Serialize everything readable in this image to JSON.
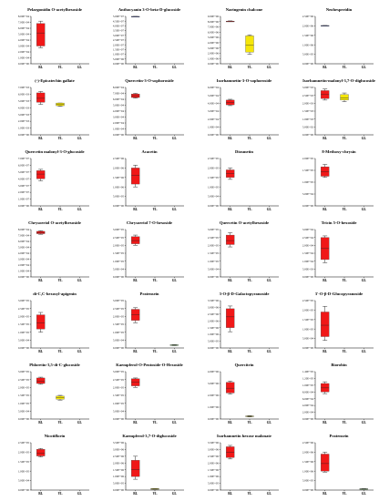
{
  "colors": {
    "red": "#f01818",
    "yellow": "#f5e60a",
    "green": "#4dbb2a",
    "blue": "#3a48b8",
    "axis": "#000000",
    "tick_text": "#222222"
  },
  "chart_data": [
    {
      "type": "box",
      "title": "Pelargonidin O-acetylhexoside",
      "categories": [
        "BL",
        "YL",
        "GL"
      ],
      "yticks": [
        "0.00E+00",
        "1.00E+04",
        "2.00E+04",
        "3.00E+04",
        "4.00E+04",
        "5.00E+04",
        "6.00E+04",
        "7.00E+04",
        "8.00E+04"
      ],
      "ylim": [
        0,
        80000
      ],
      "boxes": [
        {
          "color": "red",
          "min": 27000,
          "q1": 30000,
          "median": 52000,
          "q3": 68000,
          "max": 72000
        },
        null,
        null
      ]
    },
    {
      "type": "box",
      "title": "Anthocyanin 3-O-beta-D-glucoside",
      "categories": [
        "BL",
        "YL",
        "GL"
      ],
      "yticks": [
        "0.00E+00",
        "5.00E+06",
        "1.00E+07",
        "1.50E+07",
        "2.00E+07",
        "2.50E+07",
        "3.00E+07",
        "3.50E+07",
        "4.00E+07",
        "4.50E+07",
        "5.00E+07"
      ],
      "ylim": [
        0,
        50000000
      ],
      "boxes": [
        {
          "color": "blue",
          "min": 49800000,
          "q1": 49800000,
          "median": 49900000,
          "q3": 50000000,
          "max": 50000000
        },
        null,
        null
      ]
    },
    {
      "type": "box",
      "title": "Naringenin chalcone",
      "categories": [
        "BL",
        "YL",
        "GL"
      ],
      "yticks": [
        "0.00E+00",
        "1.00E+06",
        "2.00E+06",
        "3.00E+06",
        "4.00E+06",
        "5.00E+06",
        "6.00E+06",
        "7.00E+06",
        "8.00E+06",
        "9.00E+06"
      ],
      "ylim": [
        0,
        9000000
      ],
      "boxes": [
        {
          "color": "red",
          "min": 8000000,
          "q1": 8020000,
          "median": 8050000,
          "q3": 8100000,
          "max": 8150000
        },
        {
          "color": "yellow",
          "min": 1800000,
          "q1": 2200000,
          "median": 3500000,
          "q3": 5300000,
          "max": 5500000
        },
        null
      ]
    },
    {
      "type": "box",
      "title": "Neohesperidin",
      "categories": [
        "BL",
        "YL",
        "GL"
      ],
      "yticks": [
        "0.00E+00",
        "5.00E+05",
        "1.00E+06",
        "1.50E+06",
        "2.00E+06",
        "2.50E+06"
      ],
      "ylim": [
        0,
        2500000
      ],
      "boxes": [
        {
          "color": "blue",
          "min": 2000000,
          "q1": 2000000,
          "median": 2010000,
          "q3": 2020000,
          "max": 2020000
        },
        null,
        null
      ]
    },
    {
      "type": "box",
      "title": "(-)-Epicatechin gallate",
      "categories": [
        "BL",
        "YL",
        "GL"
      ],
      "yticks": [
        "0.00E+00",
        "1.00E+03",
        "2.00E+03",
        "3.00E+03",
        "4.00E+03",
        "5.00E+03",
        "6.00E+03",
        "7.00E+03"
      ],
      "ylim": [
        0,
        7000
      ],
      "boxes": [
        {
          "color": "red",
          "min": 4500,
          "q1": 4800,
          "median": 5400,
          "q3": 6200,
          "max": 6400
        },
        {
          "color": "yellow",
          "min": 4200,
          "q1": 4300,
          "median": 4500,
          "q3": 4700,
          "max": 4700
        },
        null
      ]
    },
    {
      "type": "box",
      "title": "Quercetin-3-O-sophoroside",
      "categories": [
        "BL",
        "YL",
        "GL"
      ],
      "yticks": [
        "0.00E+00",
        "1.00E+04",
        "2.00E+04",
        "3.00E+04",
        "4.00E+04",
        "5.00E+04",
        "6.00E+04",
        "7.00E+04",
        "8.00E+04"
      ],
      "ylim": [
        0,
        80000
      ],
      "boxes": [
        {
          "color": "red",
          "min": 62000,
          "q1": 63000,
          "median": 66000,
          "q3": 69000,
          "max": 70000
        },
        null,
        null
      ]
    },
    {
      "type": "box",
      "title": "Isorhamnetin-3-O-sophoroside",
      "categories": [
        "BL",
        "YL",
        "GL"
      ],
      "yticks": [
        "0.00E+00",
        "1.00E+04",
        "2.00E+04",
        "3.00E+04",
        "4.00E+04",
        "5.00E+04",
        "6.00E+04"
      ],
      "ylim": [
        0,
        60000
      ],
      "boxes": [
        {
          "color": "red",
          "min": 37000,
          "q1": 38000,
          "median": 41000,
          "q3": 44000,
          "max": 45000
        },
        null,
        null
      ]
    },
    {
      "type": "box",
      "title": "Isorhamnetin-malonyl-3,7-O-diglucoside",
      "categories": [
        "BL",
        "YL",
        "GL"
      ],
      "yticks": [
        "0.00E+00",
        "5.00E+02",
        "1.00E+03",
        "1.50E+03",
        "2.00E+03",
        "2.50E+03",
        "3.00E+03"
      ],
      "ylim": [
        0,
        3000
      ],
      "boxes": [
        {
          "color": "red",
          "min": 2200,
          "q1": 2300,
          "median": 2550,
          "q3": 2800,
          "max": 2900
        },
        {
          "color": "yellow",
          "min": 2100,
          "q1": 2200,
          "median": 2350,
          "q3": 2550,
          "max": 2650
        },
        null
      ]
    },
    {
      "type": "box",
      "title": "Quercetin malonyl-3-O-glucoside",
      "categories": [
        "BL",
        "YL",
        "GL"
      ],
      "yticks": [
        "0.00E+00",
        "1.00E+07",
        "2.00E+07",
        "3.00E+07",
        "4.00E+07",
        "5.00E+07",
        "6.00E+07",
        "7.00E+07"
      ],
      "ylim": [
        0,
        70000000
      ],
      "boxes": [
        {
          "color": "red",
          "min": 37000000,
          "q1": 40000000,
          "median": 47000000,
          "q3": 52000000,
          "max": 54000000
        },
        null,
        null
      ]
    },
    {
      "type": "box",
      "title": "Acacetin",
      "categories": [
        "BL",
        "YL",
        "GL"
      ],
      "yticks": [
        "0.00E+00",
        "5.00E+05",
        "1.00E+06",
        "1.50E+06",
        "2.00E+06",
        "2.50E+06"
      ],
      "ylim": [
        0,
        2500000
      ],
      "boxes": [
        {
          "color": "red",
          "min": 1000000,
          "q1": 1150000,
          "median": 1600000,
          "q3": 2000000,
          "max": 2150000
        },
        null,
        null
      ]
    },
    {
      "type": "box",
      "title": "Diosmetin",
      "categories": [
        "BL",
        "YL",
        "GL"
      ],
      "yticks": [
        "0.00E+00",
        "5.00E+04",
        "1.00E+05",
        "1.50E+05",
        "2.00E+05",
        "2.50E+05"
      ],
      "ylim": [
        0,
        250000
      ],
      "boxes": [
        {
          "color": "red",
          "min": 140000,
          "q1": 150000,
          "median": 170000,
          "q3": 190000,
          "max": 200000
        },
        null,
        null
      ]
    },
    {
      "type": "box",
      "title": "8-Methoxy-chrysin",
      "categories": [
        "BL",
        "YL",
        "GL"
      ],
      "yticks": [
        "0.00E+00",
        "5.00E+04",
        "1.00E+05",
        "1.50E+05",
        "2.00E+05"
      ],
      "ylim": [
        0,
        200000
      ],
      "boxes": [
        {
          "color": "red",
          "min": 120000,
          "q1": 125000,
          "median": 145000,
          "q3": 165000,
          "max": 175000
        },
        null,
        null
      ]
    },
    {
      "type": "box",
      "title": "Chrysoeriol O-acetylhexoside",
      "categories": [
        "BL",
        "YL",
        "GL"
      ],
      "yticks": [
        "0.00E+00",
        "1.00E+04",
        "2.00E+04",
        "3.00E+04",
        "4.00E+04",
        "5.00E+04",
        "6.00E+04",
        "7.00E+04",
        "8.00E+04"
      ],
      "ylim": [
        0,
        80000
      ],
      "boxes": [
        {
          "color": "red",
          "min": 72000,
          "q1": 73000,
          "median": 75000,
          "q3": 77000,
          "max": 78000
        },
        null,
        null
      ]
    },
    {
      "type": "box",
      "title": "Chrysoeriol 7-O-hexoside",
      "categories": [
        "BL",
        "YL",
        "GL"
      ],
      "yticks": [
        "0.00E+00",
        "5.00E+04",
        "1.00E+05",
        "1.50E+05",
        "2.00E+05",
        "2.50E+05",
        "3.00E+05"
      ],
      "ylim": [
        0,
        300000
      ],
      "boxes": [
        {
          "color": "red",
          "min": 200000,
          "q1": 210000,
          "median": 230000,
          "q3": 255000,
          "max": 265000
        },
        null,
        null
      ]
    },
    {
      "type": "box",
      "title": "Quercetin O-acetylhexoside",
      "categories": [
        "BL",
        "YL",
        "GL"
      ],
      "yticks": [
        "0.00E+00",
        "5.00E+04",
        "1.00E+05",
        "1.50E+05",
        "2.00E+05",
        "2.50E+05",
        "3.00E+05"
      ],
      "ylim": [
        0,
        300000
      ],
      "boxes": [
        {
          "color": "red",
          "min": 190000,
          "q1": 205000,
          "median": 230000,
          "q3": 265000,
          "max": 280000
        },
        null,
        null
      ]
    },
    {
      "type": "box",
      "title": "Tricin 5-O-hexoside",
      "categories": [
        "BL",
        "YL",
        "GL"
      ],
      "yticks": [
        "0.00E+00",
        "5.00E+03",
        "1.00E+04",
        "1.50E+04",
        "2.00E+04",
        "2.50E+04",
        "3.00E+04"
      ],
      "ylim": [
        0,
        30000
      ],
      "boxes": [
        {
          "color": "red",
          "min": 9000,
          "q1": 11000,
          "median": 18000,
          "q3": 25000,
          "max": 26000
        },
        null,
        null
      ]
    },
    {
      "type": "box",
      "title": "di-C,C-hexosyl-apigenin",
      "categories": [
        "BL",
        "YL",
        "GL"
      ],
      "yticks": [
        "0.00E+00",
        "5.00E+04",
        "1.00E+05",
        "1.50E+05",
        "2.00E+05",
        "2.50E+05",
        "3.00E+05"
      ],
      "ylim": [
        0,
        300000
      ],
      "boxes": [
        {
          "color": "red",
          "min": 100000,
          "q1": 120000,
          "median": 160000,
          "q3": 210000,
          "max": 225000
        },
        null,
        null
      ]
    },
    {
      "type": "box",
      "title": "Pratensein",
      "categories": [
        "BL",
        "YL",
        "GL"
      ],
      "yticks": [
        "0.00E+00",
        "5.00E+04",
        "1.00E+05",
        "1.50E+05",
        "2.00E+05",
        "2.50E+05",
        "3.00E+05"
      ],
      "ylim": [
        0,
        300000
      ],
      "boxes": [
        {
          "color": "red",
          "min": 160000,
          "q1": 175000,
          "median": 210000,
          "q3": 245000,
          "max": 255000
        },
        null,
        {
          "color": "green",
          "min": 15000,
          "q1": 16000,
          "median": 18000,
          "q3": 20000,
          "max": 21000
        }
      ]
    },
    {
      "type": "box",
      "title": "3-O-β-D-Galactopyranoside",
      "categories": [
        "BL",
        "YL",
        "GL"
      ],
      "yticks": [
        "0.00E+00",
        "5.00E+05",
        "1.00E+06",
        "1.50E+06",
        "2.00E+06",
        "2.50E+06",
        "3.00E+06",
        "3.50E+06"
      ],
      "ylim": [
        0,
        3500000
      ],
      "boxes": [
        {
          "color": "red",
          "min": 1200000,
          "q1": 1500000,
          "median": 2300000,
          "q3": 2900000,
          "max": 3100000
        },
        null,
        null
      ]
    },
    {
      "type": "box",
      "title": "3'-O-β-D-Glucopyranoside",
      "categories": [
        "BL",
        "YL",
        "GL"
      ],
      "yticks": [
        "0.00E+00",
        "5.00E+04",
        "1.00E+05",
        "1.50E+05",
        "2.00E+05",
        "2.50E+05"
      ],
      "ylim": [
        0,
        250000
      ],
      "boxes": [
        {
          "color": "red",
          "min": 40000,
          "q1": 60000,
          "median": 120000,
          "q3": 190000,
          "max": 220000
        },
        null,
        null
      ]
    },
    {
      "type": "box",
      "title": "Phloretin-3,5-di-C-glucoside",
      "categories": [
        "BL",
        "YL",
        "GL"
      ],
      "yticks": [
        "0.00E+00",
        "5.00E+04",
        "1.00E+05",
        "1.50E+05",
        "2.00E+05",
        "2.50E+05",
        "3.00E+05"
      ],
      "ylim": [
        0,
        300000
      ],
      "boxes": [
        {
          "color": "red",
          "min": 220000,
          "q1": 225000,
          "median": 240000,
          "q3": 260000,
          "max": 265000
        },
        {
          "color": "yellow",
          "min": 120000,
          "q1": 125000,
          "median": 135000,
          "q3": 145000,
          "max": 150000
        },
        null
      ]
    },
    {
      "type": "box",
      "title": "Kaempferol-O-Pentoside-O-Hexoside",
      "categories": [
        "BL",
        "YL",
        "GL"
      ],
      "yticks": [
        "0.00E+00",
        "5.00E+04",
        "1.00E+05",
        "1.50E+05",
        "2.00E+05",
        "2.50E+05",
        "3.00E+05"
      ],
      "ylim": [
        0,
        300000
      ],
      "boxes": [
        {
          "color": "red",
          "min": 200000,
          "q1": 210000,
          "median": 235000,
          "q3": 255000,
          "max": 260000
        },
        null,
        null
      ]
    },
    {
      "type": "box",
      "title": "Quercitrin",
      "categories": [
        "BL",
        "YL",
        "GL"
      ],
      "yticks": [
        "0.00E+00",
        "1.00E+06",
        "2.00E+06",
        "3.00E+06",
        "4.00E+06"
      ],
      "ylim": [
        0,
        4000000
      ],
      "boxes": [
        {
          "color": "red",
          "min": 2100000,
          "q1": 2200000,
          "median": 2600000,
          "q3": 3100000,
          "max": 3200000
        },
        {
          "color": "yellow",
          "min": 180000,
          "q1": 200000,
          "median": 230000,
          "q3": 260000,
          "max": 280000
        },
        null
      ]
    },
    {
      "type": "box",
      "title": "Biorobin",
      "categories": [
        "BL",
        "YL",
        "GL"
      ],
      "yticks": [
        "0.00E+00",
        "2.00E+04",
        "4.00E+04",
        "6.00E+04",
        "8.00E+04",
        "1.00E+05",
        "1.20E+05",
        "1.40E+05"
      ],
      "ylim": [
        0,
        140000
      ],
      "boxes": [
        {
          "color": "red",
          "min": 75000,
          "q1": 80000,
          "median": 92000,
          "q3": 105000,
          "max": 110000
        },
        null,
        null
      ]
    },
    {
      "type": "box",
      "title": "Nicotiflorin",
      "categories": [
        "BL",
        "YL",
        "GL"
      ],
      "yticks": [
        "0.00E+00",
        "5.00E+04",
        "1.00E+05",
        "1.50E+05",
        "2.00E+05",
        "2.50E+05"
      ],
      "ylim": [
        0,
        250000
      ],
      "boxes": [
        {
          "color": "red",
          "min": 175000,
          "q1": 180000,
          "median": 195000,
          "q3": 215000,
          "max": 220000
        },
        null,
        null
      ]
    },
    {
      "type": "box",
      "title": "Kaempferol-3,7-O-diglucoside",
      "categories": [
        "BL",
        "YL",
        "GL"
      ],
      "yticks": [
        "0.00E+00",
        "5.00E+05",
        "1.00E+06",
        "1.50E+06",
        "2.00E+06",
        "2.50E+06",
        "3.00E+06",
        "3.50E+06"
      ],
      "ylim": [
        0,
        3500000
      ],
      "boxes": [
        {
          "color": "red",
          "min": 800000,
          "q1": 1000000,
          "median": 1500000,
          "q3": 2200000,
          "max": 2500000
        },
        {
          "color": "yellow",
          "min": 60000,
          "q1": 70000,
          "median": 90000,
          "q3": 110000,
          "max": 120000
        },
        null
      ]
    },
    {
      "type": "box",
      "title": "Isorhamnetin hexose malonate",
      "categories": [
        "BL",
        "YL",
        "GL"
      ],
      "yticks": [
        "0.00E+00",
        "5.00E+05",
        "1.00E+06",
        "1.50E+06",
        "2.00E+06",
        "2.50E+06",
        "3.00E+06",
        "3.50E+06"
      ],
      "ylim": [
        0,
        3500000
      ],
      "boxes": [
        {
          "color": "red",
          "min": 2300000,
          "q1": 2400000,
          "median": 2800000,
          "q3": 3200000,
          "max": 3300000
        },
        null,
        null
      ]
    },
    {
      "type": "box",
      "title": "Pratensein",
      "categories": [
        "BL",
        "YL",
        "GL"
      ],
      "yticks": [
        "0.00E+00",
        "5.00E+05",
        "1.00E+06",
        "1.50E+06",
        "2.00E+06",
        "2.50E+06"
      ],
      "ylim": [
        0,
        2500000
      ],
      "boxes": [
        {
          "color": "red",
          "min": 950000,
          "q1": 1000000,
          "median": 1400000,
          "q3": 1900000,
          "max": 2000000
        },
        null,
        {
          "color": "green",
          "min": 50000,
          "q1": 55000,
          "median": 62000,
          "q3": 70000,
          "max": 75000
        }
      ]
    }
  ]
}
